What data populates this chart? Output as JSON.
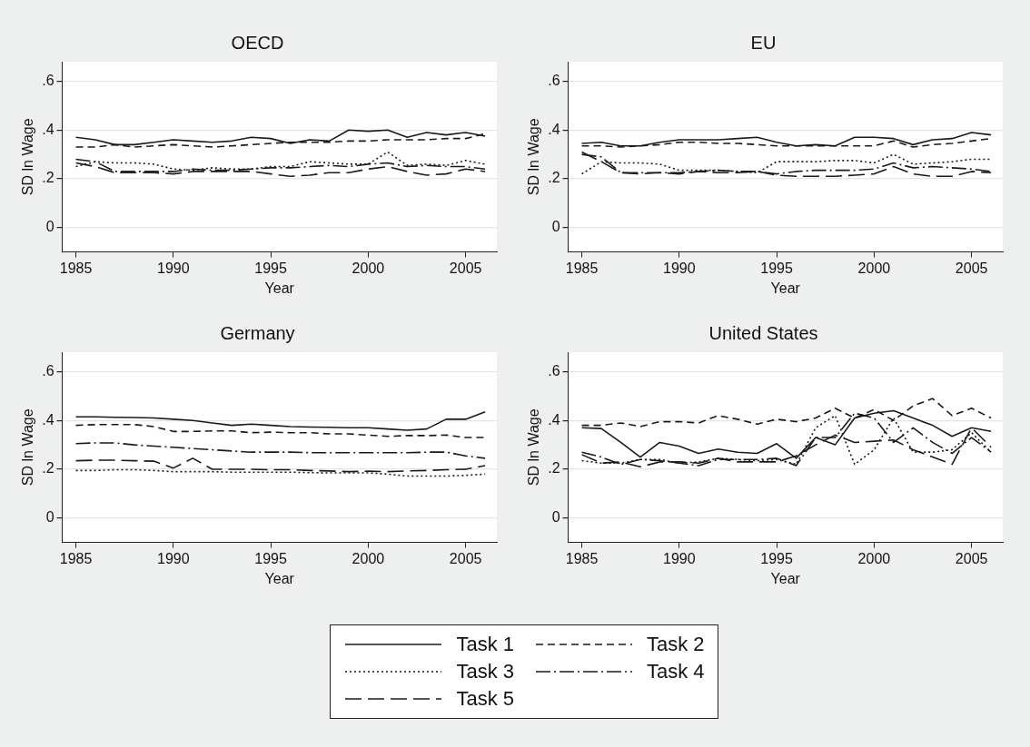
{
  "chart_data": [
    {
      "type": "line",
      "title": "OECD",
      "xlabel": "Year",
      "ylabel": "SD ln Wage",
      "x": [
        1985,
        1986,
        1987,
        1988,
        1989,
        1990,
        1991,
        1992,
        1993,
        1994,
        1995,
        1996,
        1997,
        1998,
        1999,
        2000,
        2001,
        2002,
        2003,
        2004,
        2005,
        2006
      ],
      "xlim": [
        1984.3,
        2006.6
      ],
      "xticks": [
        1985,
        1990,
        1995,
        2000,
        2005
      ],
      "ylim": [
        -0.1,
        0.68
      ],
      "yticks": [
        {
          "value": 0,
          "label": "0"
        },
        {
          "value": 0.2,
          "label": ".2"
        },
        {
          "value": 0.4,
          "label": ".4"
        },
        {
          "value": 0.6,
          "label": ".6"
        }
      ],
      "grid": "y",
      "legend": "bottom",
      "marker": "none",
      "series": [
        {
          "name": "Task 1",
          "color": "#1a1a1a",
          "line_style": "solid",
          "values": [
            0.37,
            0.36,
            0.34,
            0.34,
            0.35,
            0.36,
            0.355,
            0.35,
            0.355,
            0.37,
            0.365,
            0.345,
            0.36,
            0.355,
            0.4,
            0.395,
            0.4,
            0.37,
            0.39,
            0.38,
            0.39,
            0.375
          ]
        },
        {
          "name": "Task 2",
          "color": "#1a1a1a",
          "line_style": "dashed",
          "values": [
            0.33,
            0.33,
            0.34,
            0.33,
            0.335,
            0.34,
            0.335,
            0.33,
            0.335,
            0.34,
            0.345,
            0.35,
            0.35,
            0.35,
            0.355,
            0.355,
            0.36,
            0.36,
            0.36,
            0.365,
            0.365,
            0.385
          ]
        },
        {
          "name": "Task 3",
          "color": "#1a1a1a",
          "line_style": "dotted",
          "values": [
            0.25,
            0.27,
            0.265,
            0.265,
            0.26,
            0.24,
            0.235,
            0.245,
            0.24,
            0.24,
            0.25,
            0.25,
            0.27,
            0.265,
            0.26,
            0.26,
            0.31,
            0.255,
            0.26,
            0.255,
            0.275,
            0.26
          ]
        },
        {
          "name": "Task 4",
          "color": "#1a1a1a",
          "line_style": "dashdot",
          "values": [
            0.28,
            0.27,
            0.23,
            0.23,
            0.23,
            0.23,
            0.24,
            0.235,
            0.235,
            0.24,
            0.245,
            0.245,
            0.25,
            0.255,
            0.25,
            0.26,
            0.265,
            0.25,
            0.255,
            0.25,
            0.25,
            0.24
          ]
        },
        {
          "name": "Task 5",
          "color": "#1a1a1a",
          "line_style": "longdash",
          "values": [
            0.265,
            0.25,
            0.225,
            0.225,
            0.225,
            0.22,
            0.23,
            0.23,
            0.23,
            0.23,
            0.22,
            0.21,
            0.215,
            0.225,
            0.225,
            0.24,
            0.25,
            0.23,
            0.215,
            0.22,
            0.24,
            0.23
          ]
        }
      ]
    },
    {
      "type": "line",
      "title": "EU",
      "xlabel": "Year",
      "ylabel": "SD ln Wage",
      "x": [
        1985,
        1986,
        1987,
        1988,
        1989,
        1990,
        1991,
        1992,
        1993,
        1994,
        1995,
        1996,
        1997,
        1998,
        1999,
        2000,
        2001,
        2002,
        2003,
        2004,
        2005,
        2006
      ],
      "xlim": [
        1984.3,
        2006.6
      ],
      "xticks": [
        1985,
        1990,
        1995,
        2000,
        2005
      ],
      "ylim": [
        -0.1,
        0.68
      ],
      "yticks": [
        {
          "value": 0,
          "label": "0"
        },
        {
          "value": 0.2,
          "label": ".2"
        },
        {
          "value": 0.4,
          "label": ".4"
        },
        {
          "value": 0.6,
          "label": ".6"
        }
      ],
      "grid": "y",
      "marker": "none",
      "series": [
        {
          "color": "#1a1a1a",
          "line_style": "solid",
          "values": [
            0.345,
            0.35,
            0.335,
            0.335,
            0.35,
            0.36,
            0.36,
            0.36,
            0.365,
            0.37,
            0.35,
            0.335,
            0.34,
            0.335,
            0.37,
            0.37,
            0.365,
            0.34,
            0.36,
            0.365,
            0.39,
            0.38
          ]
        },
        {
          "color": "#1a1a1a",
          "line_style": "dashed",
          "values": [
            0.335,
            0.335,
            0.33,
            0.335,
            0.34,
            0.35,
            0.35,
            0.345,
            0.345,
            0.34,
            0.335,
            0.335,
            0.335,
            0.335,
            0.335,
            0.335,
            0.355,
            0.33,
            0.34,
            0.345,
            0.355,
            0.365
          ]
        },
        {
          "color": "#1a1a1a",
          "line_style": "dotted",
          "values": [
            0.22,
            0.27,
            0.265,
            0.265,
            0.26,
            0.235,
            0.235,
            0.235,
            0.23,
            0.225,
            0.27,
            0.27,
            0.27,
            0.275,
            0.275,
            0.265,
            0.3,
            0.26,
            0.265,
            0.27,
            0.28,
            0.28
          ]
        },
        {
          "color": "#1a1a1a",
          "line_style": "dashdot",
          "values": [
            0.3,
            0.29,
            0.225,
            0.225,
            0.225,
            0.225,
            0.23,
            0.235,
            0.23,
            0.23,
            0.22,
            0.23,
            0.235,
            0.235,
            0.235,
            0.24,
            0.265,
            0.245,
            0.25,
            0.245,
            0.24,
            0.23
          ]
        },
        {
          "color": "#1a1a1a",
          "line_style": "longdash",
          "values": [
            0.31,
            0.27,
            0.225,
            0.22,
            0.225,
            0.22,
            0.23,
            0.225,
            0.225,
            0.23,
            0.215,
            0.21,
            0.21,
            0.21,
            0.215,
            0.22,
            0.25,
            0.22,
            0.21,
            0.21,
            0.23,
            0.225
          ]
        }
      ]
    },
    {
      "type": "line",
      "title": "Germany",
      "xlabel": "Year",
      "ylabel": "SD ln Wage",
      "x": [
        1985,
        1986,
        1987,
        1988,
        1989,
        1990,
        1991,
        1992,
        1993,
        1994,
        1995,
        1996,
        1997,
        1998,
        1999,
        2000,
        2001,
        2002,
        2003,
        2004,
        2005,
        2006
      ],
      "xlim": [
        1984.3,
        2006.6
      ],
      "xticks": [
        1985,
        1990,
        1995,
        2000,
        2005
      ],
      "ylim": [
        -0.1,
        0.68
      ],
      "yticks": [
        {
          "value": 0,
          "label": "0"
        },
        {
          "value": 0.2,
          "label": ".2"
        },
        {
          "value": 0.4,
          "label": ".4"
        },
        {
          "value": 0.6,
          "label": ".6"
        }
      ],
      "grid": "y",
      "marker": "none",
      "series": [
        {
          "color": "#1a1a1a",
          "line_style": "solid",
          "values": [
            0.415,
            0.415,
            0.413,
            0.412,
            0.41,
            0.405,
            0.4,
            0.39,
            0.38,
            0.385,
            0.38,
            0.375,
            0.373,
            0.372,
            0.37,
            0.37,
            0.365,
            0.36,
            0.365,
            0.405,
            0.405,
            0.435
          ]
        },
        {
          "color": "#1a1a1a",
          "line_style": "dashed",
          "values": [
            0.38,
            0.383,
            0.383,
            0.383,
            0.375,
            0.355,
            0.355,
            0.357,
            0.357,
            0.35,
            0.352,
            0.35,
            0.35,
            0.345,
            0.345,
            0.34,
            0.335,
            0.338,
            0.338,
            0.34,
            0.33,
            0.33
          ]
        },
        {
          "color": "#1a1a1a",
          "line_style": "dotted",
          "values": [
            0.195,
            0.195,
            0.198,
            0.198,
            0.195,
            0.19,
            0.19,
            0.19,
            0.188,
            0.188,
            0.188,
            0.188,
            0.186,
            0.185,
            0.185,
            0.185,
            0.18,
            0.172,
            0.172,
            0.172,
            0.175,
            0.18
          ]
        },
        {
          "color": "#1a1a1a",
          "line_style": "dashdot",
          "values": [
            0.305,
            0.308,
            0.308,
            0.3,
            0.295,
            0.29,
            0.285,
            0.28,
            0.275,
            0.27,
            0.27,
            0.27,
            0.268,
            0.268,
            0.268,
            0.268,
            0.268,
            0.268,
            0.27,
            0.27,
            0.255,
            0.245
          ]
        },
        {
          "color": "#1a1a1a",
          "line_style": "longdash",
          "values": [
            0.235,
            0.237,
            0.237,
            0.235,
            0.233,
            0.205,
            0.245,
            0.2,
            0.2,
            0.2,
            0.198,
            0.198,
            0.195,
            0.193,
            0.19,
            0.192,
            0.19,
            0.193,
            0.195,
            0.198,
            0.2,
            0.215
          ]
        }
      ]
    },
    {
      "type": "line",
      "title": "United States",
      "xlabel": "Year",
      "ylabel": "SD ln Wage",
      "x": [
        1985,
        1986,
        1987,
        1988,
        1989,
        1990,
        1991,
        1992,
        1993,
        1994,
        1995,
        1996,
        1997,
        1998,
        1999,
        2000,
        2001,
        2002,
        2003,
        2004,
        2005,
        2006
      ],
      "xlim": [
        1984.3,
        2006.6
      ],
      "xticks": [
        1985,
        1990,
        1995,
        2000,
        2005
      ],
      "ylim": [
        -0.1,
        0.68
      ],
      "yticks": [
        {
          "value": 0,
          "label": "0"
        },
        {
          "value": 0.2,
          "label": ".2"
        },
        {
          "value": 0.4,
          "label": ".4"
        },
        {
          "value": 0.6,
          "label": ".6"
        }
      ],
      "grid": "y",
      "marker": "none",
      "series": [
        {
          "color": "#1a1a1a",
          "line_style": "solid",
          "values": [
            0.37,
            0.367,
            0.31,
            0.25,
            0.31,
            0.295,
            0.265,
            0.283,
            0.27,
            0.265,
            0.305,
            0.245,
            0.33,
            0.3,
            0.41,
            0.43,
            0.44,
            0.41,
            0.38,
            0.335,
            0.37,
            0.355
          ]
        },
        {
          "color": "#1a1a1a",
          "line_style": "dashed",
          "values": [
            0.38,
            0.38,
            0.39,
            0.375,
            0.395,
            0.395,
            0.39,
            0.42,
            0.405,
            0.385,
            0.405,
            0.395,
            0.41,
            0.45,
            0.41,
            0.445,
            0.4,
            0.46,
            0.49,
            0.42,
            0.45,
            0.41
          ]
        },
        {
          "color": "#1a1a1a",
          "line_style": "dotted",
          "values": [
            0.235,
            0.225,
            0.225,
            0.24,
            0.24,
            0.225,
            0.23,
            0.245,
            0.24,
            0.235,
            0.24,
            0.22,
            0.37,
            0.42,
            0.22,
            0.28,
            0.41,
            0.27,
            0.27,
            0.28,
            0.35,
            0.27
          ]
        },
        {
          "color": "#1a1a1a",
          "line_style": "dashdot",
          "values": [
            0.27,
            0.25,
            0.22,
            0.24,
            0.235,
            0.225,
            0.215,
            0.24,
            0.24,
            0.24,
            0.245,
            0.215,
            0.33,
            0.33,
            0.43,
            0.41,
            0.31,
            0.37,
            0.31,
            0.265,
            0.33,
            0.27
          ]
        },
        {
          "color": "#1a1a1a",
          "line_style": "longdash",
          "values": [
            0.26,
            0.225,
            0.23,
            0.21,
            0.23,
            0.23,
            0.225,
            0.245,
            0.23,
            0.23,
            0.23,
            0.255,
            0.3,
            0.34,
            0.31,
            0.315,
            0.32,
            0.28,
            0.25,
            0.22,
            0.37,
            0.29
          ]
        }
      ]
    }
  ]
}
